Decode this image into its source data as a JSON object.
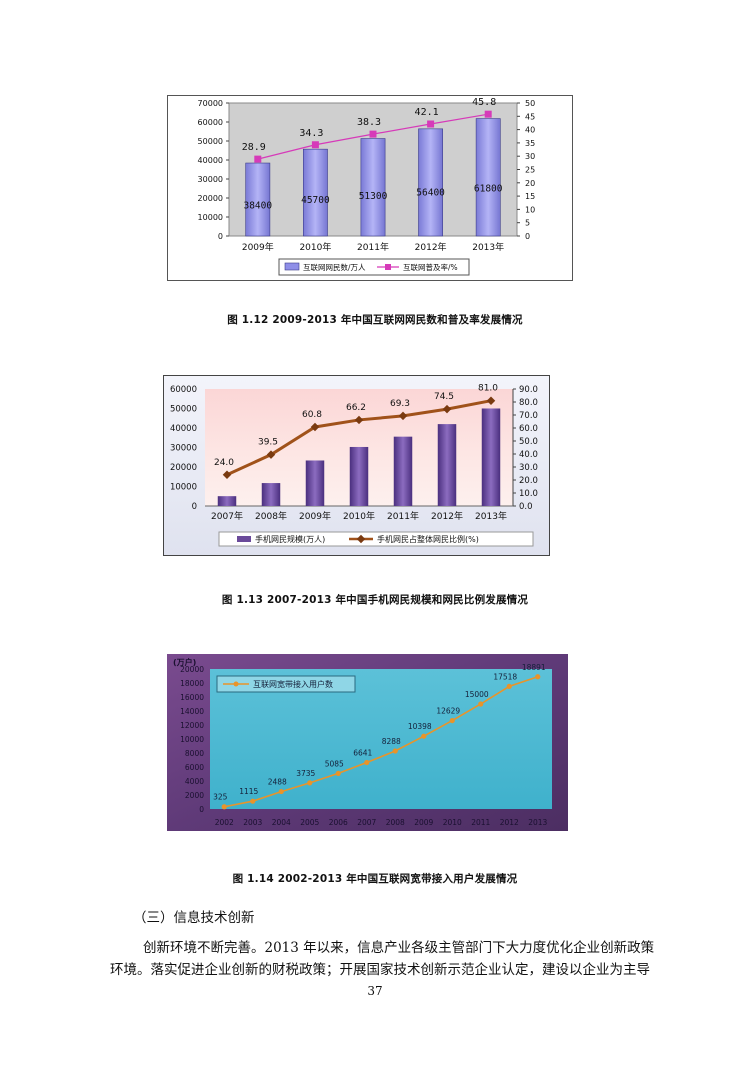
{
  "charts": [
    {
      "type": "bar+line",
      "categories": [
        "2009年",
        "2010年",
        "2011年",
        "2012年",
        "2013年"
      ],
      "bar_series": {
        "name": "互联网网民数/万人",
        "values": [
          38400,
          45700,
          51300,
          56400,
          61800
        ],
        "color": "#8f8fe8"
      },
      "line_series": {
        "name": "互联网普及率/%",
        "values": [
          28.9,
          34.3,
          38.3,
          42.1,
          45.8
        ],
        "color": "#d63ab9"
      },
      "left_axis": {
        "ticks": [
          "0",
          "10000",
          "20000",
          "30000",
          "40000",
          "50000",
          "60000",
          "70000"
        ],
        "ylim": [
          0,
          70000
        ]
      },
      "right_axis": {
        "ticks": [
          "0",
          "5",
          "10",
          "15",
          "20",
          "25",
          "30",
          "35",
          "40",
          "45",
          "50"
        ],
        "ylim": [
          0,
          50
        ]
      },
      "bar_labels": [
        "38400",
        "45700",
        "51300",
        "56400",
        "61800"
      ],
      "line_labels": [
        "28.9",
        "34.3",
        "38.3",
        "42.1",
        "45.8"
      ],
      "legend": "bottom"
    },
    {
      "type": "bar+line",
      "categories": [
        "2007年",
        "2008年",
        "2009年",
        "2010年",
        "2011年",
        "2012年",
        "2013年"
      ],
      "bar_series": {
        "name": "手机网民规模(万人)",
        "values": [
          5040,
          11760,
          23344,
          30274,
          35558,
          41997,
          50006
        ],
        "color": "#6a4a9a"
      },
      "line_series": {
        "name": "手机网民占整体网民比例(%)",
        "values": [
          24.0,
          39.5,
          60.8,
          66.2,
          69.3,
          74.5,
          81.0
        ],
        "color": "#a0521a"
      },
      "left_axis": {
        "ticks": [
          "0",
          "10000",
          "20000",
          "30000",
          "40000",
          "50000",
          "60000"
        ],
        "ylim": [
          0,
          60000
        ]
      },
      "right_axis": {
        "ticks": [
          "0.0",
          "10.0",
          "20.0",
          "30.0",
          "40.0",
          "50.0",
          "60.0",
          "70.0",
          "80.0",
          "90.0"
        ],
        "ylim": [
          0,
          90
        ]
      },
      "line_labels": [
        "24.0",
        "39.5",
        "60.8",
        "66.2",
        "69.3",
        "74.5",
        "81.0"
      ],
      "legend": "bottom"
    },
    {
      "type": "line",
      "unit": "(万户)",
      "categories": [
        "2002",
        "2003",
        "2004",
        "2005",
        "2006",
        "2007",
        "2008",
        "2009",
        "2010",
        "2011",
        "2012",
        "2013"
      ],
      "series": [
        {
          "name": "互联网宽带接入用户数",
          "values": [
            325,
            1115,
            2488,
            3735,
            5085,
            6641,
            8288,
            10398,
            12629,
            15000,
            17518,
            18891
          ],
          "color": "#e8942a"
        }
      ],
      "point_labels": [
        "325",
        "1115",
        "2488",
        "3735",
        "5085",
        "6641",
        "8288",
        "10398",
        "12629",
        "15000",
        "17518",
        "18891"
      ],
      "y_axis": {
        "ticks": [
          "0",
          "2000",
          "4000",
          "6000",
          "8000",
          "10000",
          "12000",
          "14000",
          "16000",
          "18000",
          "20000"
        ],
        "ylim": [
          0,
          20000
        ]
      },
      "legend": "top-left"
    }
  ],
  "captions": {
    "fig1": "图 1.12 2009-2013 年中国互联网网民数和普及率发展情况",
    "fig2": "图 1.13 2007-2013 年中国手机网民规模和网民比例发展情况",
    "fig3": "图 1.14 2002-2013 年中国互联网宽带接入用户发展情况"
  },
  "text": {
    "section_heading": "（三）信息技术创新",
    "para_line1": "创新环境不断完善。2013 年以来，信息产业各级主管部门下大力度优化企业创新政策",
    "para_line2": "环境。落实促进企业创新的财税政策；开展国家技术创新示范企业认定，建设以企业为主导"
  },
  "page_number": "37"
}
